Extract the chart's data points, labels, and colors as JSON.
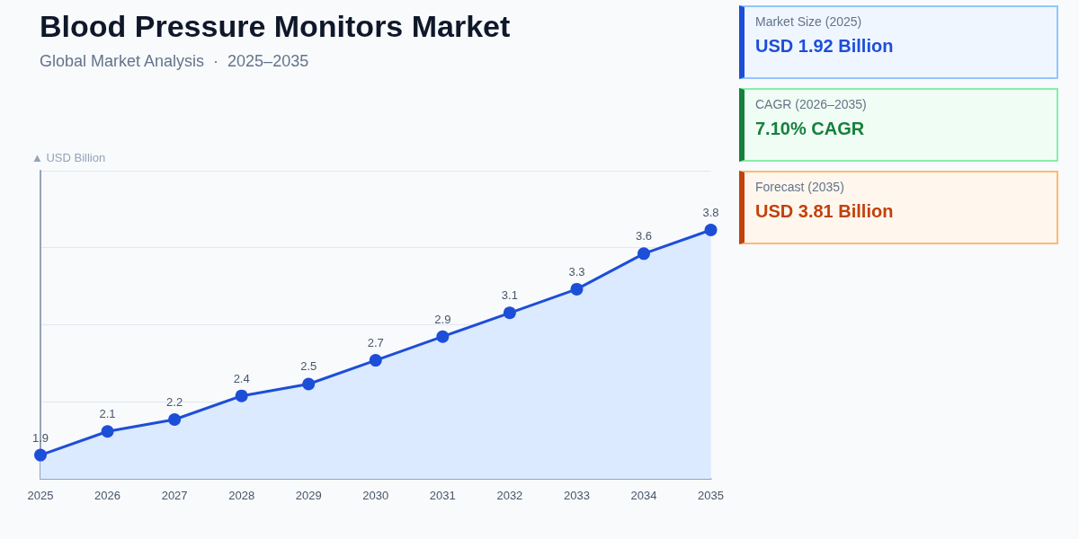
{
  "chart_data": [
    {
      "type": "area",
      "title": "Blood Pressure Monitors Market",
      "subtitle": "Global Market Analysis  ·  2025–2035",
      "ylabel": "▲ USD Billion",
      "categories": [
        "2025",
        "2026",
        "2027",
        "2028",
        "2029",
        "2030",
        "2031",
        "2032",
        "2033",
        "2034",
        "2035"
      ],
      "series": [
        {
          "color": "#1d4ed8",
          "values": [
            1.9,
            2.1,
            2.2,
            2.4,
            2.5,
            2.7,
            2.9,
            3.1,
            3.3,
            3.6,
            3.8
          ]
        }
      ],
      "ylim": [
        1.7,
        4.3
      ],
      "yticks": [
        {
          "value": 1.7,
          "label": null
        },
        {
          "value": 2.35,
          "label": null
        },
        {
          "value": 3.0,
          "label": null
        },
        {
          "value": 3.65,
          "label": null
        },
        {
          "value": 4.3,
          "label": null
        }
      ],
      "tick_labels": "x",
      "grid": "y",
      "marker": "circle",
      "data_labels": true
    },
    {
      "type": "other",
      "annotations": [
        "Market Size (2025)",
        "USD 1.92 Billion",
        "CAGR (2026–2035)",
        "7.10% CAGR",
        "Forecast (2035)",
        "USD 3.81 Billion"
      ],
      "colors": [
        "#1d4ed8",
        "#15803d",
        "#c2410c"
      ]
    }
  ]
}
